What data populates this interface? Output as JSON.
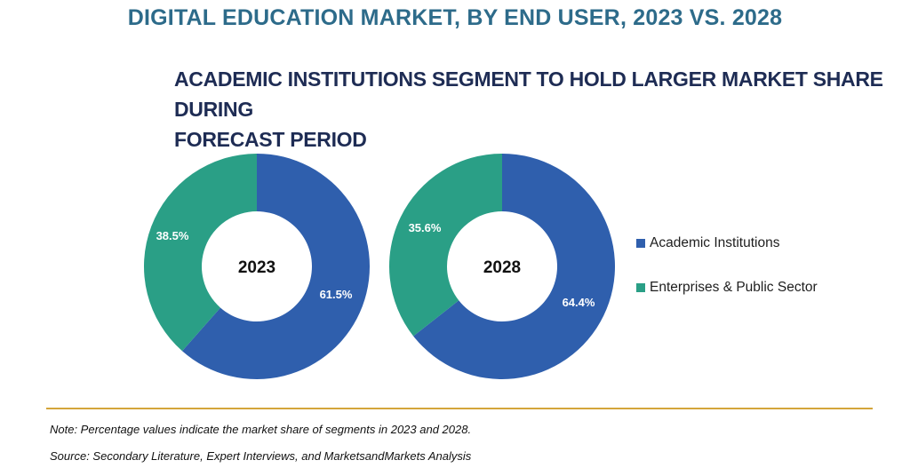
{
  "title": "DIGITAL EDUCATION MARKET, BY END USER, 2023 VS. 2028",
  "subtitle_line1": "ACADEMIC INSTITUTIONS SEGMENT TO HOLD LARGER MARKET SHARE DURING",
  "subtitle_line2": "FORECAST PERIOD",
  "note": "Note: Percentage values indicate the market share of segments in 2023 and 2028.",
  "source": "Source: Secondary Literature, Expert Interviews, and MarketsandMarkets Analysis",
  "colors": {
    "academic": "#2f5fad",
    "enterprise": "#2a9f86",
    "title": "#2d6b8a",
    "subtitle": "#1e2c54",
    "divider": "#d4a53b"
  },
  "chart_data": {
    "type": "pie",
    "variant": "donut",
    "series_names": [
      "Academic Institutions",
      "Enterprises & Public Sector"
    ],
    "charts": [
      {
        "label": "2023",
        "slices": [
          {
            "name": "Academic Institutions",
            "value": 61.5,
            "label": "61.5%"
          },
          {
            "name": "Enterprises & Public Sector",
            "value": 38.5,
            "label": "38.5%"
          }
        ]
      },
      {
        "label": "2028",
        "slices": [
          {
            "name": "Academic Institutions",
            "value": 64.4,
            "label": "64.4%"
          },
          {
            "name": "Enterprises & Public Sector",
            "value": 35.6,
            "label": "35.6%"
          }
        ]
      }
    ],
    "legend_placement": "right"
  },
  "legend": {
    "items": [
      {
        "label": "Academic Institutions"
      },
      {
        "label": "Enterprises & Public Sector"
      }
    ]
  }
}
